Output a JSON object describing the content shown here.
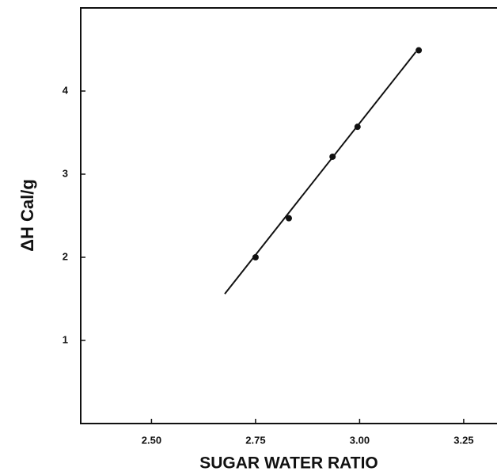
{
  "chart_data": {
    "type": "scatter",
    "x_label": "SUGAR WATER RATIO",
    "y_label": "ΔH Cal/g",
    "series": [
      {
        "name": "data",
        "color": "#111111",
        "x": [
          2.75,
          2.83,
          2.935,
          2.995,
          3.142
        ],
        "values": [
          2.0,
          2.47,
          3.21,
          3.57,
          4.49
        ]
      },
      {
        "name": "fit",
        "color": "#111111",
        "x": [
          2.676,
          3.135
        ],
        "values": [
          1.56,
          4.47
        ]
      }
    ],
    "xlim": [
      2.33,
      3.33
    ],
    "xticks": [
      {
        "value": 2.5,
        "label": "2.50"
      },
      2.75,
      {
        "value": 3.0,
        "label": "3.00"
      },
      3.25
    ],
    "ylim": [
      0,
      5
    ],
    "yticks": [
      1,
      2,
      3,
      4
    ]
  }
}
